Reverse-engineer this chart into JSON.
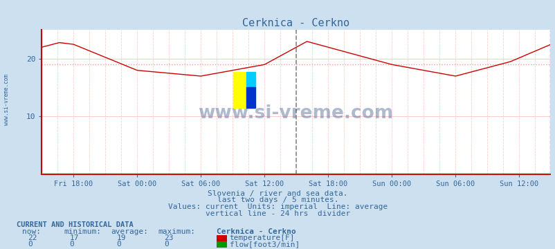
{
  "title": "Cerknica - Cerkno",
  "bg_color": "#cde0f0",
  "plot_bg_color": "#ffffff",
  "line_color": "#cc0000",
  "avg_line_color": "#ff9999",
  "grid_color_v": "#ffcccc",
  "grid_color_h": "#ffcccc",
  "text_color": "#336699",
  "title_color": "#336699",
  "x_tick_labels": [
    "Fri 18:00",
    "Sat 00:00",
    "Sat 06:00",
    "Sat 12:00",
    "Sat 18:00",
    "Sun 00:00",
    "Sun 06:00",
    "Sun 12:00"
  ],
  "x_tick_positions": [
    36,
    108,
    180,
    252,
    324,
    396,
    468,
    540
  ],
  "total_points": 576,
  "ylim": [
    0,
    25
  ],
  "yticks": [
    10,
    20
  ],
  "avg_value": 19,
  "divider_x": 288,
  "watermark": "www.si-vreme.com",
  "sub_text1": "Slovenia / river and sea data.",
  "sub_text2": "last two days / 5 minutes.",
  "sub_text3": "Values: current  Units: imperial  Line: average",
  "sub_text4": "vertical line - 24 hrs  divider",
  "label_current_title": "CURRENT AND HISTORICAL DATA",
  "col_headers": [
    "now:",
    "minimum:",
    "average:",
    "maximum:",
    "Cerknica - Cerkno"
  ],
  "temp_row": [
    "22",
    "17",
    "19",
    "23"
  ],
  "flow_row": [
    "0",
    "0",
    "0",
    "0"
  ],
  "temp_label": "temperature[F]",
  "flow_label": "flow[foot3/min]",
  "temp_swatch": "#cc0000",
  "flow_swatch": "#009900",
  "keypoints_t": [
    0,
    20,
    36,
    108,
    180,
    252,
    300,
    324,
    396,
    468,
    530,
    576
  ],
  "keypoints_v": [
    22.0,
    22.8,
    22.5,
    18.0,
    17.0,
    19.0,
    23.0,
    22.0,
    19.0,
    17.0,
    19.5,
    22.5
  ]
}
